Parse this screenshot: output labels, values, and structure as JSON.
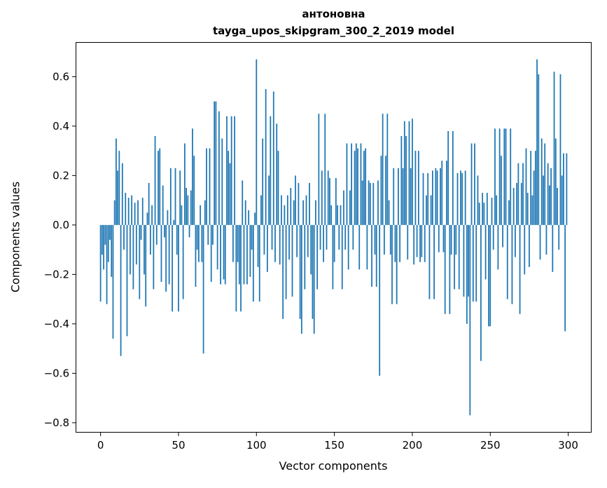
{
  "figure": {
    "title_line1": "антоновна",
    "title_line2": "tayga_upos_skipgram_300_2_2019 model",
    "xlabel": "Vector components",
    "ylabel": "Components values"
  },
  "chart_data": {
    "type": "bar",
    "title": "антоновна\ntayga_upos_skipgram_300_2_2019 model",
    "xlabel": "Vector components",
    "ylabel": "Components values",
    "bar_color": "#1f77b4",
    "bar_width": 0.8,
    "grid": false,
    "legend": false,
    "xlim": [
      -16,
      315
    ],
    "ylim": [
      -0.84,
      0.74
    ],
    "xticks": [
      {
        "value": 0,
        "label": "0"
      },
      {
        "value": 50,
        "label": "50"
      },
      {
        "value": 100,
        "label": "100"
      },
      {
        "value": 150,
        "label": "150"
      },
      {
        "value": 200,
        "label": "200"
      },
      {
        "value": 250,
        "label": "250"
      },
      {
        "value": 300,
        "label": "300"
      }
    ],
    "yticks": [
      {
        "value": -0.8,
        "label": "−0.8"
      },
      {
        "value": -0.6,
        "label": "−0.6"
      },
      {
        "value": -0.4,
        "label": "−0.4"
      },
      {
        "value": -0.2,
        "label": "−0.2"
      },
      {
        "value": 0.0,
        "label": "0.0"
      },
      {
        "value": 0.2,
        "label": "0.2"
      },
      {
        "value": 0.4,
        "label": "0.4"
      },
      {
        "value": 0.6,
        "label": "0.6"
      }
    ],
    "x_start": 0,
    "values": [
      -0.31,
      -0.12,
      -0.18,
      -0.08,
      -0.32,
      -0.15,
      -0.06,
      -0.21,
      -0.46,
      0.1,
      0.35,
      0.22,
      0.3,
      -0.53,
      0.25,
      -0.1,
      0.13,
      -0.45,
      0.11,
      -0.2,
      0.12,
      -0.26,
      0.09,
      -0.16,
      0.1,
      -0.3,
      -0.06,
      0.11,
      -0.2,
      -0.33,
      0.05,
      0.17,
      -0.12,
      0.08,
      -0.26,
      0.36,
      -0.08,
      0.3,
      0.31,
      -0.23,
      0.16,
      -0.05,
      -0.27,
      0.06,
      -0.24,
      0.23,
      -0.35,
      0.02,
      0.23,
      -0.12,
      -0.35,
      0.22,
      0.08,
      -0.3,
      0.33,
      0.15,
      0.12,
      -0.05,
      0.14,
      0.39,
      0.28,
      -0.25,
      -0.1,
      -0.15,
      0.08,
      -0.15,
      -0.52,
      0.1,
      0.31,
      -0.08,
      0.31,
      -0.23,
      -0.08,
      0.5,
      0.5,
      -0.18,
      0.46,
      -0.24,
      0.35,
      -0.22,
      -0.24,
      0.44,
      0.3,
      0.25,
      0.44,
      -0.15,
      0.44,
      -0.35,
      -0.15,
      -0.24,
      -0.35,
      0.18,
      -0.24,
      0.1,
      -0.24,
      0.06,
      -0.21,
      -0.1,
      -0.31,
      0.05,
      0.67,
      -0.17,
      -0.31,
      0.12,
      0.35,
      -0.12,
      0.55,
      -0.19,
      0.2,
      0.44,
      -0.1,
      0.54,
      -0.15,
      0.41,
      0.3,
      -0.16,
      0.12,
      -0.38,
      0.08,
      -0.3,
      0.12,
      -0.14,
      0.15,
      -0.29,
      0.1,
      0.2,
      -0.13,
      0.17,
      -0.38,
      -0.44,
      0.1,
      -0.26,
      0.12,
      -0.13,
      0.17,
      -0.2,
      -0.38,
      -0.44,
      0.1,
      -0.26,
      0.45,
      -0.1,
      0.22,
      -0.15,
      0.45,
      -0.1,
      0.22,
      0.19,
      0.08,
      -0.26,
      -0.15,
      0.19,
      0.08,
      -0.1,
      0.08,
      -0.26,
      0.14,
      -0.1,
      0.33,
      -0.18,
      0.14,
      0.33,
      -0.1,
      0.3,
      0.33,
      0.31,
      -0.18,
      0.33,
      0.18,
      0.3,
      0.31,
      -0.18,
      0.18,
      0.17,
      -0.25,
      0.17,
      -0.12,
      -0.25,
      0.18,
      -0.61,
      0.28,
      0.45,
      -0.12,
      0.28,
      0.45,
      0.1,
      -0.12,
      -0.32,
      0.23,
      -0.15,
      -0.32,
      0.23,
      -0.15,
      0.36,
      0.23,
      0.42,
      0.36,
      -0.14,
      0.42,
      0.23,
      0.43,
      -0.16,
      0.3,
      -0.13,
      0.3,
      -0.15,
      -0.13,
      0.21,
      -0.15,
      0.12,
      0.21,
      -0.3,
      0.12,
      0.22,
      -0.3,
      0.23,
      0.22,
      -0.11,
      0.23,
      0.26,
      -0.11,
      -0.36,
      0.26,
      0.38,
      -0.36,
      -0.12,
      0.38,
      -0.26,
      -0.12,
      0.21,
      -0.26,
      0.22,
      0.21,
      -0.29,
      0.22,
      -0.4,
      -0.29,
      -0.77,
      0.33,
      -0.31,
      0.33,
      -0.31,
      0.2,
      0.09,
      -0.55,
      0.13,
      0.09,
      -0.22,
      0.13,
      -0.41,
      -0.41,
      0.11,
      -0.1,
      0.39,
      0.12,
      -0.18,
      0.39,
      0.28,
      -0.09,
      0.39,
      0.39,
      -0.3,
      0.1,
      0.39,
      -0.32,
      0.15,
      -0.13,
      0.17,
      0.25,
      -0.36,
      0.17,
      0.25,
      -0.2,
      0.31,
      0.13,
      -0.17,
      0.3,
      0.12,
      0.22,
      0.3,
      0.67,
      0.61,
      -0.14,
      0.35,
      0.2,
      0.33,
      -0.12,
      0.25,
      0.16,
      0.23,
      -0.19,
      0.62,
      0.35,
      0.15,
      -0.1,
      0.61,
      0.2,
      0.29,
      -0.43,
      0.29
    ]
  }
}
